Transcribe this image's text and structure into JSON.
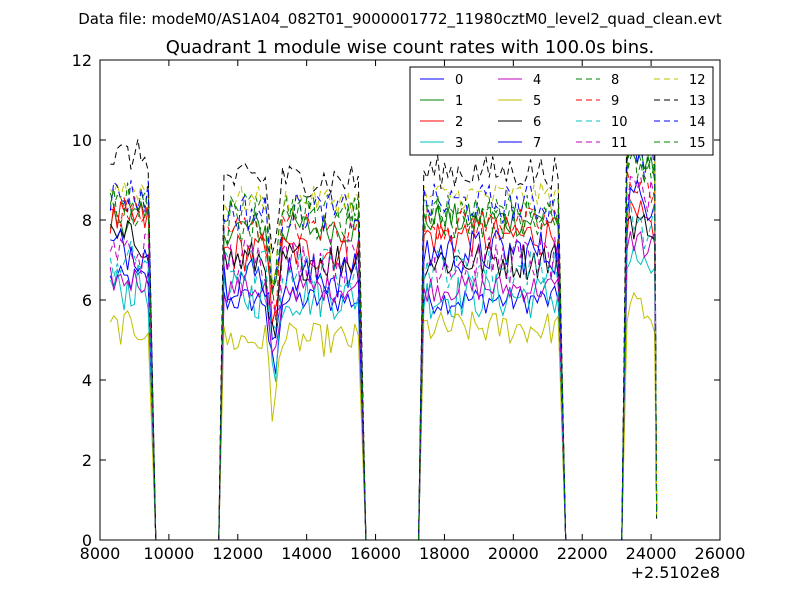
{
  "chart_data": {
    "type": "line",
    "suptitle": "Data file: modeM0/AS1A04_082T01_9000001772_11980cztM0_level2_quad_clean.evt",
    "title": "Quadrant 1 module wise count rates with 100.0s bins.",
    "xlabel": "",
    "ylabel": "",
    "x_offset_label": "+2.5102e8",
    "xlim": [
      8000,
      26000
    ],
    "ylim": [
      0,
      12
    ],
    "xticks": [
      8000,
      10000,
      12000,
      14000,
      16000,
      18000,
      20000,
      22000,
      24000,
      26000
    ],
    "xtick_labels": [
      "8000",
      "10000",
      "12000",
      "14000",
      "16000",
      "18000",
      "20000",
      "22000",
      "24000",
      "26000"
    ],
    "yticks": [
      0,
      2,
      4,
      6,
      8,
      10,
      12
    ],
    "ytick_labels": [
      "0",
      "2",
      "4",
      "6",
      "8",
      "10",
      "12"
    ],
    "grid": false,
    "legend_position": "top-right",
    "legend_columns": 4,
    "segments": [
      {
        "x_start": 8300,
        "x_end": 9400
      },
      {
        "x_start": 11600,
        "x_end": 15500
      },
      {
        "x_start": 17400,
        "x_end": 21300
      },
      {
        "x_start": 23300,
        "x_end": 24100
      }
    ],
    "gap_drop_x": [
      [
        9400,
        9650
      ],
      [
        11400,
        11600
      ],
      [
        15500,
        15700
      ],
      [
        17300,
        17400
      ],
      [
        21300,
        21500
      ],
      [
        23150,
        23300
      ],
      [
        24100,
        24200
      ]
    ],
    "dip_x": 13050,
    "series": [
      {
        "name": "0",
        "color": "#0000ff",
        "dash": "solid",
        "levels": [
          6.5,
          6.0,
          6.0,
          10.0
        ]
      },
      {
        "name": "1",
        "color": "#008000",
        "dash": "solid",
        "levels": [
          8.0,
          7.8,
          8.0,
          9.5
        ]
      },
      {
        "name": "2",
        "color": "#ff0000",
        "dash": "solid",
        "levels": [
          8.0,
          7.2,
          7.6,
          8.0
        ]
      },
      {
        "name": "3",
        "color": "#00bfbf",
        "dash": "solid",
        "levels": [
          6.3,
          6.1,
          6.1,
          7.0
        ]
      },
      {
        "name": "4",
        "color": "#bf00bf",
        "dash": "solid",
        "levels": [
          6.5,
          6.3,
          6.3,
          7.5
        ]
      },
      {
        "name": "5",
        "color": "#bfbf00",
        "dash": "solid",
        "levels": [
          5.3,
          5.0,
          5.3,
          5.8
        ]
      },
      {
        "name": "6",
        "color": "#000000",
        "dash": "solid",
        "levels": [
          7.5,
          7.0,
          7.0,
          8.0
        ]
      },
      {
        "name": "7",
        "color": "#0000ff",
        "dash": "solid",
        "levels": [
          7.3,
          6.6,
          7.2,
          8.5
        ]
      },
      {
        "name": "8",
        "color": "#008000",
        "dash": "dashed",
        "levels": [
          8.5,
          8.3,
          8.2,
          9.5
        ]
      },
      {
        "name": "9",
        "color": "#ff0000",
        "dash": "dashed",
        "levels": [
          8.2,
          7.8,
          7.9,
          9.0
        ]
      },
      {
        "name": "10",
        "color": "#00bfbf",
        "dash": "dashed",
        "levels": [
          7.0,
          6.8,
          6.8,
          8.0
        ]
      },
      {
        "name": "11",
        "color": "#bf00bf",
        "dash": "dashed",
        "levels": [
          7.2,
          7.0,
          7.0,
          8.5
        ]
      },
      {
        "name": "12",
        "color": "#bfbf00",
        "dash": "dashed",
        "levels": [
          8.8,
          8.5,
          8.6,
          10.0
        ]
      },
      {
        "name": "13",
        "color": "#000000",
        "dash": "dashed",
        "levels": [
          9.6,
          9.0,
          9.2,
          10.4
        ]
      },
      {
        "name": "14",
        "color": "#0000ff",
        "dash": "dashed",
        "levels": [
          8.6,
          8.2,
          8.4,
          9.8
        ]
      },
      {
        "name": "15",
        "color": "#008000",
        "dash": "dashed",
        "levels": [
          8.4,
          8.0,
          8.1,
          9.6
        ]
      }
    ]
  }
}
